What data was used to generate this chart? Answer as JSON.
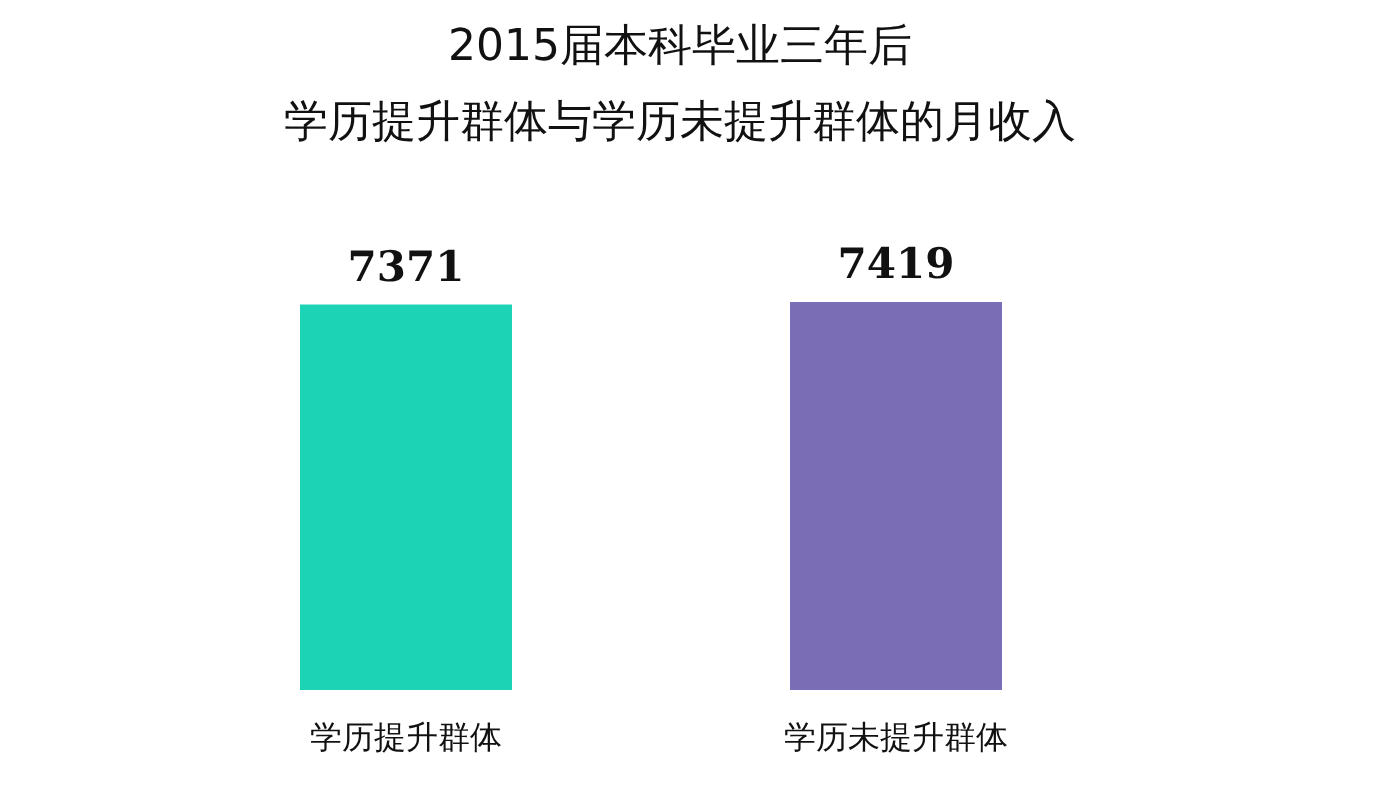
{
  "chart_data": {
    "type": "bar",
    "title": "2015届本科毕业三年后",
    "subtitle": "学历提升群体与学历未提升群体的月收入",
    "categories": [
      "学历提升群体",
      "学历未提升群体"
    ],
    "values": [
      7371,
      7419
    ],
    "colors": [
      "#1dd3b5",
      "#7a6db5"
    ],
    "data_labels": true
  }
}
